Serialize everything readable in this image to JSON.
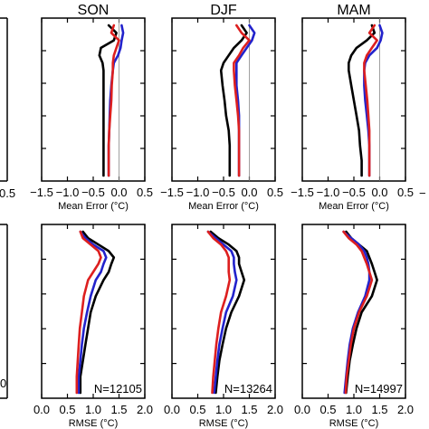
{
  "colors": {
    "black": "#000000",
    "blue": "#2222cc",
    "red": "#dd1f1f",
    "frame": "#000000"
  },
  "partial_left_labels": {
    "top_axis_end": "0.5",
    "bottom_n_fragment": "0"
  },
  "chart_data": [
    {
      "type": "line",
      "panel": "SON-mean-error",
      "title": "SON",
      "xlabel": "Mean Error (°C)",
      "xlim": [
        -1.5,
        0.5
      ],
      "x_ticks": [
        "−1.5",
        "−1.0",
        "−0.5",
        "0.0",
        "0.5"
      ],
      "x_tick_values": [
        -1.5,
        -1.0,
        -0.5,
        0.0,
        0.5
      ],
      "y_levels_fraction": [
        0.0,
        0.05,
        0.1,
        0.15,
        0.2,
        0.25,
        0.3,
        0.4,
        0.5,
        0.6,
        0.7,
        0.8,
        0.9,
        1.0
      ],
      "series": [
        {
          "color": "black",
          "values": [
            -0.2,
            -0.05,
            -0.1,
            -0.35,
            -0.38,
            -0.32,
            -0.3,
            -0.3,
            -0.3,
            -0.3,
            -0.3,
            -0.3,
            -0.3,
            -0.3
          ]
        },
        {
          "color": "blue",
          "values": [
            0.05,
            0.08,
            0.05,
            0.03,
            -0.02,
            -0.1,
            -0.12,
            -0.15,
            -0.17,
            -0.18,
            -0.19,
            -0.2,
            -0.2,
            -0.2
          ]
        },
        {
          "color": "red",
          "values": [
            -0.1,
            -0.15,
            0.0,
            -0.05,
            -0.1,
            -0.12,
            -0.12,
            -0.14,
            -0.15,
            -0.17,
            -0.19,
            -0.2,
            -0.2,
            -0.2
          ]
        }
      ]
    },
    {
      "type": "line",
      "panel": "DJF-mean-error",
      "title": "DJF",
      "xlabel": "Mean Error (°C)",
      "xlim": [
        -1.5,
        0.5
      ],
      "x_ticks": [
        "−1.5",
        "−1.0",
        "−0.5",
        "0.0",
        "0.5"
      ],
      "x_tick_values": [
        -1.5,
        -1.0,
        -0.5,
        0.0,
        0.5
      ],
      "y_levels_fraction": [
        0.0,
        0.05,
        0.1,
        0.15,
        0.2,
        0.25,
        0.3,
        0.4,
        0.5,
        0.6,
        0.7,
        0.8,
        0.9,
        1.0
      ],
      "series": [
        {
          "color": "black",
          "values": [
            -0.15,
            -0.05,
            -0.15,
            -0.3,
            -0.4,
            -0.5,
            -0.55,
            -0.52,
            -0.48,
            -0.45,
            -0.4,
            -0.38,
            -0.38,
            -0.38
          ]
        },
        {
          "color": "blue",
          "values": [
            0.0,
            0.1,
            0.05,
            -0.05,
            -0.15,
            -0.25,
            -0.25,
            -0.25,
            -0.22,
            -0.2,
            -0.2,
            -0.2,
            -0.2,
            -0.2
          ]
        },
        {
          "color": "red",
          "values": [
            -0.25,
            -0.15,
            0.0,
            -0.12,
            -0.2,
            -0.3,
            -0.3,
            -0.28,
            -0.25,
            -0.22,
            -0.2,
            -0.2,
            -0.2,
            -0.2
          ]
        }
      ]
    },
    {
      "type": "line",
      "panel": "MAM-mean-error",
      "title": "MAM",
      "xlabel": "Mean Error (°C)",
      "xlim": [
        -1.5,
        0.5
      ],
      "x_ticks": [
        "−1.5",
        "−1.0",
        "−0.5",
        "0.0",
        "0.5"
      ],
      "x_tick_values": [
        -1.5,
        -1.0,
        -0.5,
        0.0,
        0.5
      ],
      "y_levels_fraction": [
        0.0,
        0.05,
        0.1,
        0.15,
        0.2,
        0.25,
        0.3,
        0.4,
        0.5,
        0.6,
        0.7,
        0.8,
        0.9,
        1.0
      ],
      "series": [
        {
          "color": "black",
          "values": [
            -0.15,
            -0.1,
            -0.25,
            -0.45,
            -0.55,
            -0.6,
            -0.6,
            -0.55,
            -0.5,
            -0.45,
            -0.4,
            -0.38,
            -0.35,
            -0.35
          ]
        },
        {
          "color": "blue",
          "values": [
            0.0,
            0.05,
            0.02,
            -0.05,
            -0.2,
            -0.28,
            -0.3,
            -0.3,
            -0.28,
            -0.25,
            -0.22,
            -0.2,
            -0.2,
            -0.2
          ]
        },
        {
          "color": "red",
          "values": [
            -0.1,
            -0.2,
            -0.05,
            -0.15,
            -0.25,
            -0.3,
            -0.3,
            -0.27,
            -0.24,
            -0.22,
            -0.2,
            -0.2,
            -0.2,
            -0.2
          ]
        }
      ]
    },
    {
      "type": "line",
      "panel": "SON-rmse",
      "xlabel": "RMSE (°C)",
      "xlim": [
        0.0,
        2.0
      ],
      "x_ticks": [
        "0.0",
        "0.5",
        "1.0",
        "1.5",
        "2.0"
      ],
      "x_tick_values": [
        0.0,
        0.5,
        1.0,
        1.5,
        2.0
      ],
      "annotation": "N=12105",
      "y_levels_fraction": [
        0.0,
        0.04,
        0.08,
        0.12,
        0.16,
        0.2,
        0.25,
        0.3,
        0.4,
        0.5,
        0.6,
        0.7,
        0.8,
        0.9,
        1.0
      ],
      "series": [
        {
          "color": "black",
          "values": [
            0.8,
            0.9,
            1.1,
            1.3,
            1.4,
            1.35,
            1.3,
            1.2,
            1.05,
            0.95,
            0.9,
            0.85,
            0.8,
            0.75,
            0.75
          ]
        },
        {
          "color": "blue",
          "values": [
            0.75,
            0.85,
            1.0,
            1.2,
            1.25,
            1.2,
            1.15,
            1.05,
            0.95,
            0.88,
            0.82,
            0.78,
            0.75,
            0.72,
            0.72
          ]
        },
        {
          "color": "red",
          "values": [
            0.75,
            0.8,
            0.95,
            1.1,
            1.15,
            1.1,
            1.0,
            0.9,
            0.82,
            0.78,
            0.74,
            0.72,
            0.7,
            0.68,
            0.68
          ]
        }
      ]
    },
    {
      "type": "line",
      "panel": "DJF-rmse",
      "xlabel": "RMSE (°C)",
      "xlim": [
        0.0,
        2.0
      ],
      "x_ticks": [
        "0.0",
        "0.5",
        "1.0",
        "1.5",
        "2.0"
      ],
      "x_tick_values": [
        0.0,
        0.5,
        1.0,
        1.5,
        2.0
      ],
      "annotation": "N=13264",
      "y_levels_fraction": [
        0.0,
        0.04,
        0.08,
        0.12,
        0.16,
        0.2,
        0.25,
        0.3,
        0.4,
        0.5,
        0.6,
        0.7,
        0.8,
        0.9,
        1.0
      ],
      "series": [
        {
          "color": "black",
          "values": [
            0.75,
            0.9,
            1.1,
            1.25,
            1.3,
            1.3,
            1.35,
            1.4,
            1.3,
            1.15,
            1.05,
            0.98,
            0.92,
            0.88,
            0.85
          ]
        },
        {
          "color": "blue",
          "values": [
            0.7,
            0.85,
            1.0,
            1.15,
            1.2,
            1.2,
            1.22,
            1.25,
            1.18,
            1.05,
            0.98,
            0.92,
            0.88,
            0.85,
            0.82
          ]
        },
        {
          "color": "red",
          "values": [
            0.7,
            0.8,
            0.95,
            1.05,
            1.1,
            1.1,
            1.1,
            1.12,
            1.05,
            0.95,
            0.9,
            0.86,
            0.83,
            0.8,
            0.78
          ]
        }
      ]
    },
    {
      "type": "line",
      "panel": "MAM-rmse",
      "xlabel": "RMSE (°C)",
      "xlim": [
        0.0,
        2.0
      ],
      "x_ticks": [
        "0.0",
        "0.5",
        "1.0",
        "1.5",
        "2.0"
      ],
      "x_tick_values": [
        0.0,
        0.5,
        1.0,
        1.5,
        2.0
      ],
      "annotation": "N=14997",
      "y_levels_fraction": [
        0.0,
        0.04,
        0.08,
        0.12,
        0.16,
        0.2,
        0.25,
        0.3,
        0.4,
        0.5,
        0.6,
        0.7,
        0.8,
        0.9,
        1.0
      ],
      "series": [
        {
          "color": "black",
          "values": [
            0.85,
            0.95,
            1.1,
            1.25,
            1.3,
            1.35,
            1.4,
            1.45,
            1.35,
            1.15,
            1.05,
            0.98,
            0.92,
            0.88,
            0.85
          ]
        },
        {
          "color": "blue",
          "values": [
            0.8,
            0.95,
            1.1,
            1.2,
            1.25,
            1.28,
            1.3,
            1.3,
            1.22,
            1.08,
            0.98,
            0.92,
            0.88,
            0.85,
            0.82
          ]
        },
        {
          "color": "red",
          "values": [
            0.8,
            0.9,
            1.05,
            1.15,
            1.2,
            1.25,
            1.3,
            1.35,
            1.25,
            1.1,
            1.0,
            0.94,
            0.9,
            0.86,
            0.84
          ]
        }
      ]
    }
  ]
}
